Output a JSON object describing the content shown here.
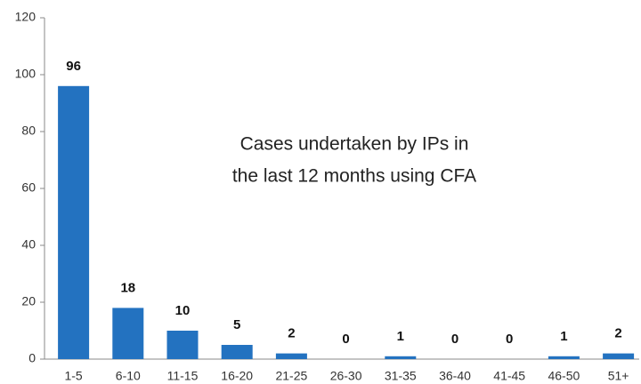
{
  "chart_data": {
    "type": "bar",
    "annotation": [
      "Cases undertaken by IPs in",
      "the last 12 months using CFA"
    ],
    "categories": [
      "1-5",
      "6-10",
      "11-15",
      "16-20",
      "21-25",
      "26-30",
      "31-35",
      "36-40",
      "41-45",
      "46-50",
      "51+"
    ],
    "values": [
      96,
      18,
      10,
      5,
      2,
      0,
      1,
      0,
      0,
      1,
      2
    ],
    "color": "#2372c0",
    "ylim": [
      0,
      120
    ],
    "yticks": [
      0,
      20,
      40,
      60,
      80,
      100,
      120
    ],
    "grid": false
  }
}
